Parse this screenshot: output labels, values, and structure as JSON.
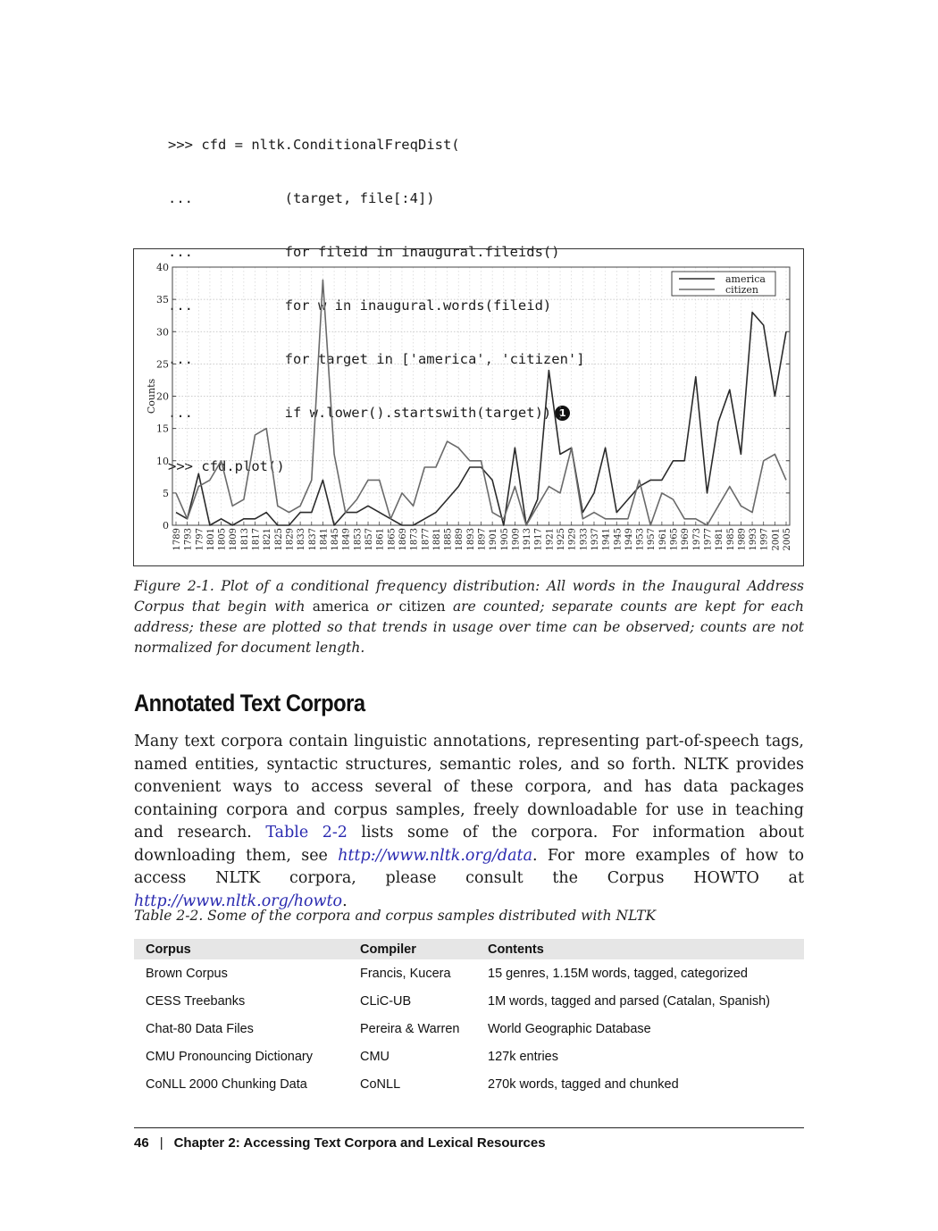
{
  "code": {
    "lines": [
      ">>> cfd = nltk.ConditionalFreqDist(",
      "...           (target, file[:4])",
      "...           for fileid in inaugural.fileids()",
      "...           for w in inaugural.words(fileid)",
      "...           for target in ['america', 'citizen']",
      "...           if w.lower().startswith(target))",
      ">>> cfd.plot()"
    ],
    "callout": "1"
  },
  "chart_data": {
    "type": "line",
    "ylabel": "Counts",
    "ylim": [
      0,
      40
    ],
    "yticks": [
      0,
      5,
      10,
      15,
      20,
      25,
      30,
      35,
      40
    ],
    "legend_position": "top-right",
    "x": [
      "1789",
      "1793",
      "1797",
      "1801",
      "1805",
      "1809",
      "1813",
      "1817",
      "1821",
      "1825",
      "1829",
      "1833",
      "1837",
      "1841",
      "1845",
      "1849",
      "1853",
      "1857",
      "1861",
      "1865",
      "1869",
      "1873",
      "1877",
      "1881",
      "1885",
      "1889",
      "1893",
      "1897",
      "1901",
      "1905",
      "1909",
      "1913",
      "1917",
      "1921",
      "1925",
      "1929",
      "1933",
      "1937",
      "1941",
      "1945",
      "1949",
      "1953",
      "1957",
      "1961",
      "1965",
      "1969",
      "1973",
      "1977",
      "1981",
      "1985",
      "1989",
      "1993",
      "1997",
      "2001",
      "2005"
    ],
    "series": [
      {
        "name": "america",
        "color": "#2b2b2b",
        "values": [
          2,
          1,
          8,
          0,
          1,
          0,
          1,
          1,
          2,
          0,
          0,
          2,
          2,
          7,
          0,
          2,
          2,
          3,
          2,
          1,
          0,
          0,
          1,
          2,
          4,
          6,
          9,
          9,
          7,
          0,
          12,
          0,
          4,
          24,
          11,
          12,
          2,
          5,
          12,
          2,
          4,
          6,
          7,
          7,
          10,
          10,
          23,
          5,
          16,
          21,
          11,
          33,
          31,
          20,
          30
        ]
      },
      {
        "name": "citizen",
        "color": "#6a6a6a",
        "values": [
          5,
          1,
          6,
          7,
          10,
          3,
          4,
          14,
          15,
          3,
          2,
          3,
          7,
          38,
          11,
          2,
          4,
          7,
          7,
          1,
          5,
          3,
          9,
          9,
          13,
          12,
          10,
          10,
          2,
          1,
          6,
          0,
          3,
          6,
          5,
          12,
          1,
          2,
          1,
          1,
          1,
          7,
          0,
          5,
          4,
          1,
          1,
          0,
          3,
          6,
          3,
          2,
          10,
          11,
          7
        ]
      }
    ]
  },
  "caption": {
    "part1": "Figure 2-1. Plot of a conditional frequency distribution: All words in the Inaugural Address Corpus that begin with ",
    "word1": "america",
    "part2": " or ",
    "word2": "citizen",
    "part3": " are counted; separate counts are kept for each address; these are plotted so that trends in usage over time can be observed; counts are not normalized for document length."
  },
  "section": {
    "heading": "Annotated Text Corpora",
    "para_part1": "Many text corpora contain linguistic annotations, representing part-of-speech tags, named entities, syntactic structures, semantic roles, and so forth. NLTK provides convenient ways to access several of these corpora, and has data packages containing corpora and corpus samples, freely downloadable for use in teaching and research. ",
    "table_ref": "Table 2-2",
    "para_part2": "  lists some of the corpora. For information about downloading them, see ",
    "link1": "http://www.nltk.org/data",
    "para_part3": ". For more examples of how to access NLTK corpora, please consult the Corpus HOWTO at ",
    "link2": "http://www.nltk.org/howto",
    "para_part4": "."
  },
  "table": {
    "caption": "Table 2-2. Some of the corpora and corpus samples distributed with NLTK",
    "headers": [
      "Corpus",
      "Compiler",
      "Contents"
    ],
    "rows": [
      [
        "Brown Corpus",
        "Francis, Kucera",
        "15 genres, 1.15M words, tagged, categorized"
      ],
      [
        "CESS Treebanks",
        "CLiC-UB",
        "1M words, tagged and parsed (Catalan, Spanish)"
      ],
      [
        "Chat-80 Data Files",
        "Pereira & Warren",
        "World Geographic Database"
      ],
      [
        "CMU Pronouncing Dictionary",
        "CMU",
        "127k entries"
      ],
      [
        "CoNLL 2000 Chunking Data",
        "CoNLL",
        "270k words, tagged and chunked"
      ]
    ]
  },
  "footer": {
    "page_number": "46",
    "separator": "|",
    "chapter": "Chapter 2:   Accessing Text Corpora and Lexical Resources"
  }
}
